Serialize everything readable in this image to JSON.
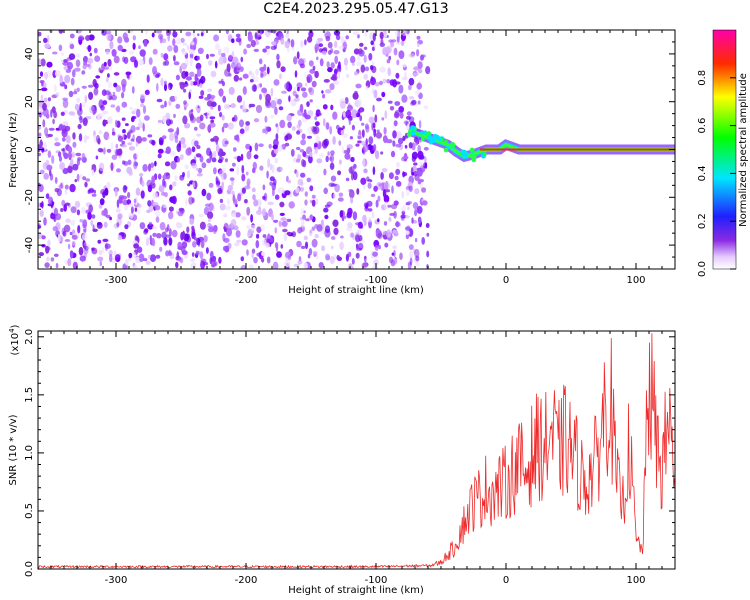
{
  "title": "C2E4.2023.295.05.47.G13",
  "chart_data": [
    {
      "type": "heatmap",
      "xlabel": "Height of straight line (km)",
      "ylabel": "Frequency (Hz)",
      "xlim": [
        -360,
        130
      ],
      "ylim": [
        -50,
        50
      ],
      "xticks": [
        -300,
        -200,
        -100,
        0,
        100
      ],
      "yticks": [
        -40,
        -20,
        0,
        20,
        40
      ],
      "noise_region_x": [
        -360,
        -60
      ],
      "ridge": {
        "x": [
          -75,
          -65,
          -55,
          -45,
          -38,
          -32,
          -25,
          -15,
          -5,
          0,
          5,
          10,
          20,
          40,
          60,
          80,
          100,
          120,
          130
        ],
        "y": [
          8,
          6,
          4,
          2,
          -1,
          -3,
          -2,
          0,
          0,
          2,
          1,
          0,
          0,
          0,
          0,
          0,
          0,
          0,
          0
        ]
      },
      "colorbar": {
        "label": "Normalized spectral amplitude",
        "range": [
          0,
          1
        ],
        "ticks": [
          "0.0",
          "0.2",
          "0.4",
          "0.6",
          "0.8"
        ]
      }
    },
    {
      "type": "line",
      "xlabel": "Height of straight line (km)",
      "ylabel": "SNR (10 * v/v)",
      "multiplier": "(x10",
      "multiplier_exp": "4",
      "multiplier_close": ")",
      "xlim": [
        -360,
        130
      ],
      "ylim": [
        0,
        2.05
      ],
      "xticks": [
        -300,
        -200,
        -100,
        0,
        100
      ],
      "yticks": [
        "0.0",
        "0.5",
        "1.0",
        "1.5",
        "2.0"
      ],
      "color": "#ee2a2a",
      "series": [
        {
          "x": [
            -360,
            -300,
            -200,
            -100,
            -60,
            -50,
            -45,
            -40,
            -35,
            -30,
            -25,
            -20,
            -15,
            -10,
            -5,
            0,
            5,
            10,
            15,
            20,
            25,
            30,
            35,
            40,
            45,
            50,
            55,
            60,
            65,
            70,
            75,
            80,
            85,
            90,
            95,
            100,
            105,
            110,
            115,
            120,
            125,
            130
          ],
          "y": [
            0.02,
            0.02,
            0.02,
            0.02,
            0.03,
            0.07,
            0.15,
            0.22,
            0.4,
            0.55,
            0.7,
            0.75,
            0.85,
            0.8,
            0.85,
            0.9,
            1.0,
            1.1,
            1.0,
            1.2,
            1.3,
            1.25,
            1.45,
            1.2,
            1.35,
            1.25,
            1.1,
            0.9,
            1.0,
            1.15,
            1.6,
            1.88,
            0.9,
            0.7,
            1.3,
            0.3,
            0.2,
            2.02,
            1.4,
            1.0,
            1.6,
            1.0
          ]
        }
      ]
    }
  ]
}
